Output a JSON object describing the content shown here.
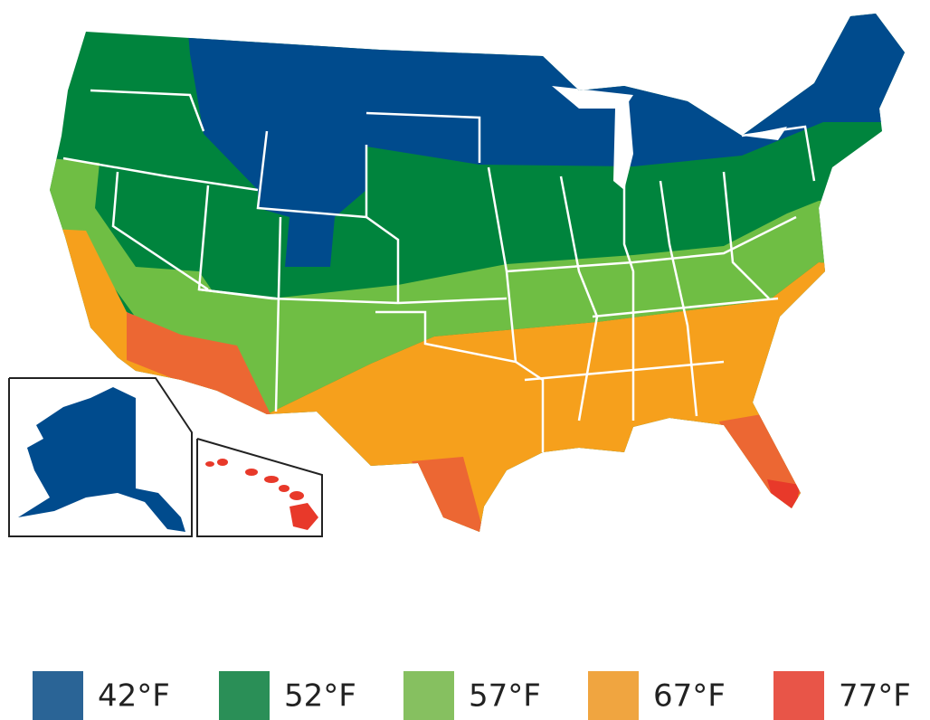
{
  "legend": [
    {
      "label": "42°F",
      "color": "#2a6496"
    },
    {
      "label": "52°F",
      "color": "#2a8f57"
    },
    {
      "label": "57°F",
      "color": "#86c060"
    },
    {
      "label": "67°F",
      "color": "#f0a540"
    },
    {
      "label": "77°F",
      "color": "#e85548"
    }
  ]
}
